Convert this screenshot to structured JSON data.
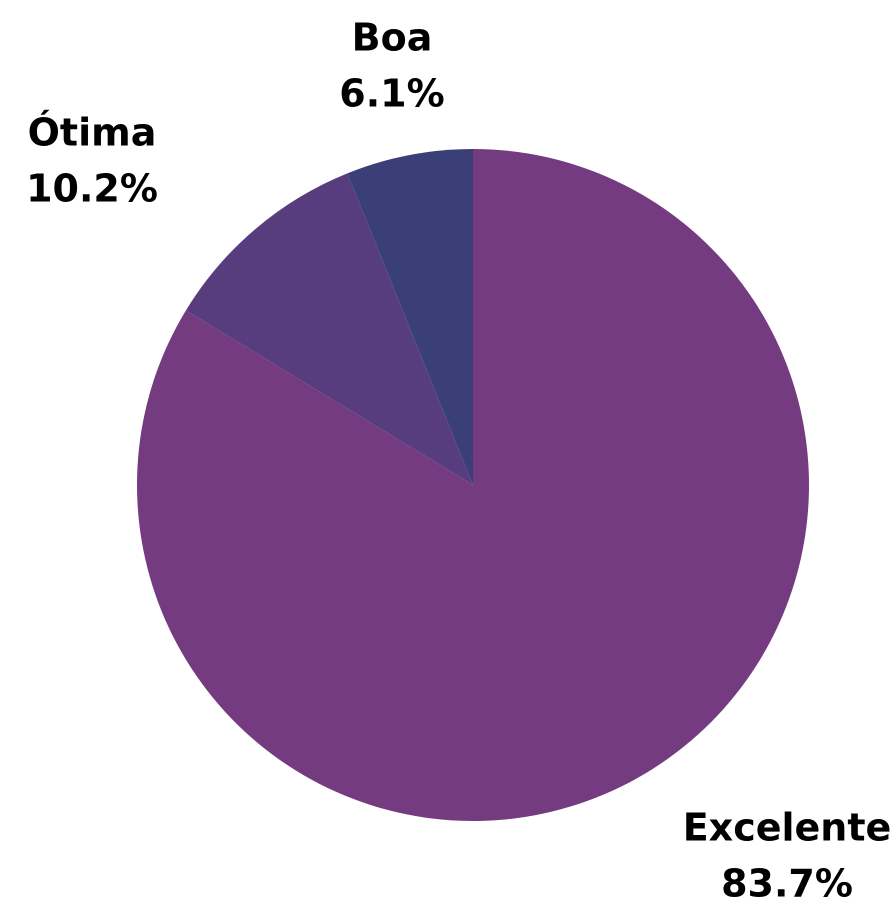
{
  "chart_data": {
    "type": "pie",
    "categories": [
      "Excelente",
      "Ótima",
      "Boa"
    ],
    "values": [
      83.7,
      10.2,
      6.1
    ],
    "value_labels": [
      "83.7%",
      "10.2%",
      "6.1%"
    ],
    "colors": [
      "#743b80",
      "#573d7e",
      "#3b3f78"
    ]
  }
}
